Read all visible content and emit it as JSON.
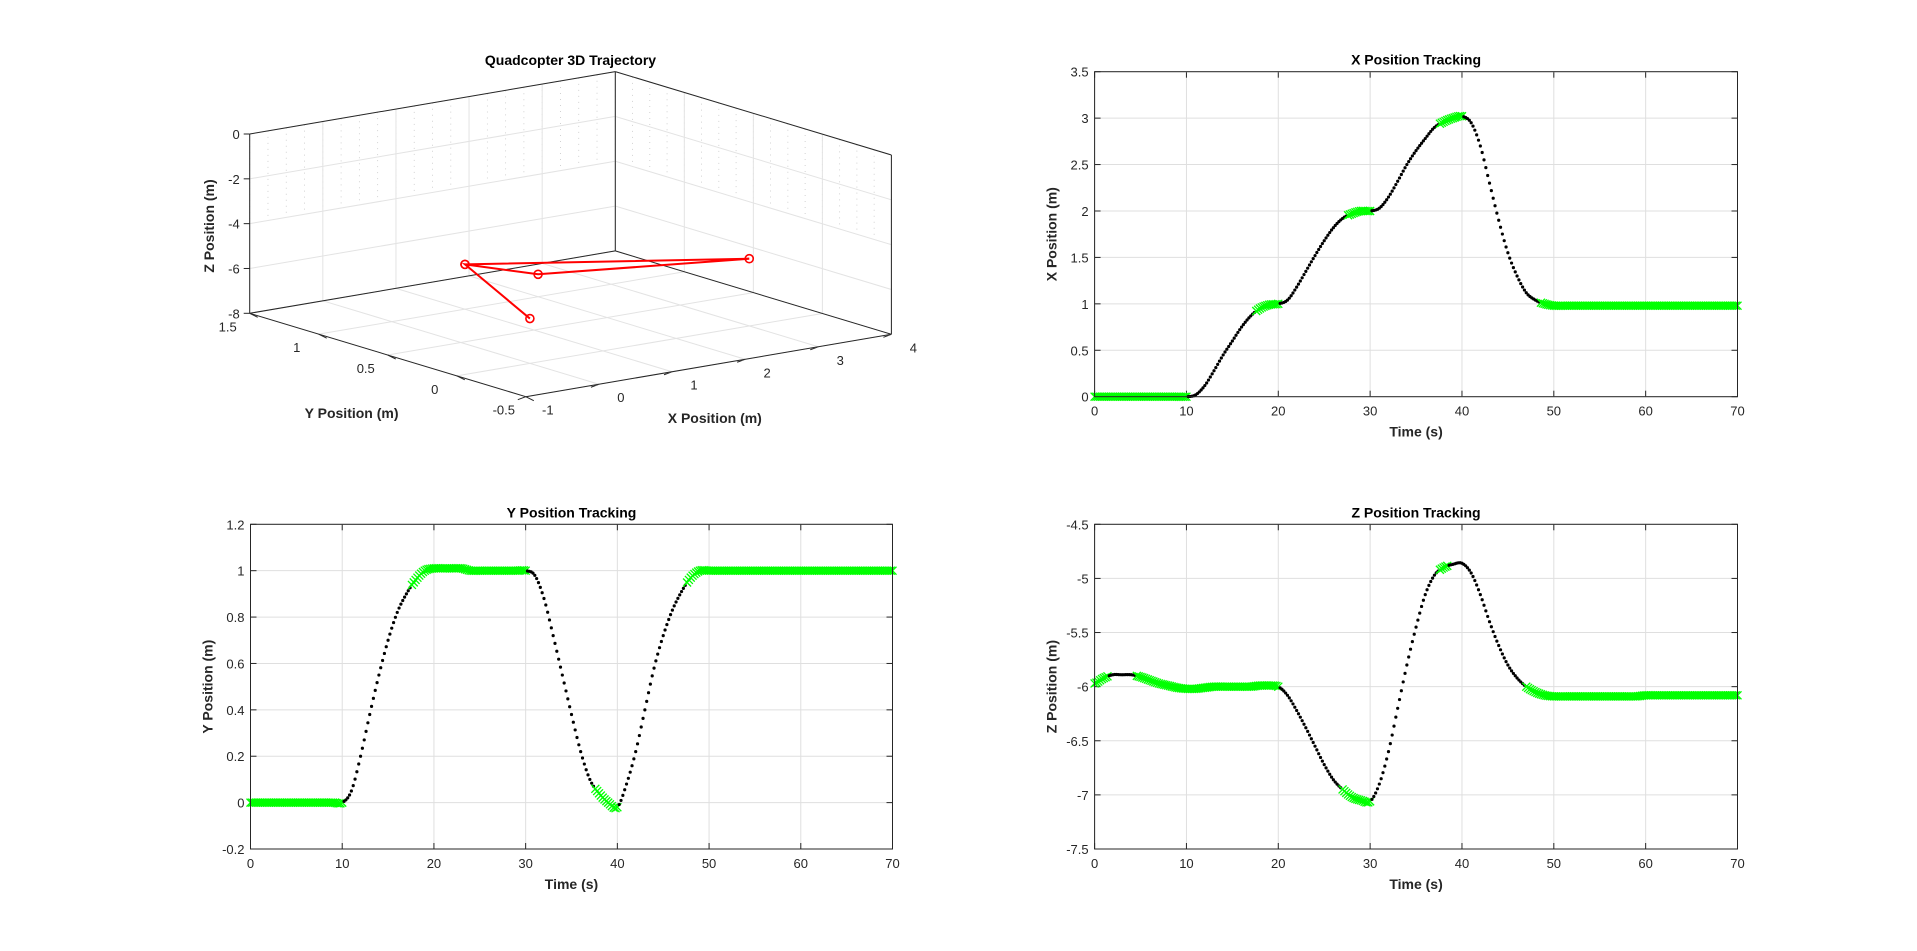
{
  "chart_data": [
    {
      "type": "line3d",
      "title": "Quadcopter 3D Trajectory",
      "xlabel": "X Position (m)",
      "ylabel": "Y Position (m)",
      "zlabel": "Z Position (m)",
      "xlim": [
        -1,
        4
      ],
      "ylim": [
        -0.5,
        1.5
      ],
      "zlim": [
        -8,
        0
      ],
      "xticks": [
        "-1",
        "0",
        "1",
        "2",
        "3",
        "4"
      ],
      "yticks": [
        "-0.5",
        "0",
        "0.5",
        "1",
        "1.5"
      ],
      "zticks": [
        "-8",
        "-6",
        "-4",
        "-2",
        "0"
      ],
      "grid": true,
      "path_color": "#ff0000",
      "waypoints": [
        {
          "x": 0,
          "y": 0,
          "z": -6
        },
        {
          "x": 1,
          "y": 1,
          "z": -6
        },
        {
          "x": 2,
          "y": 1,
          "z": -7
        },
        {
          "x": 3,
          "y": 0,
          "z": -5
        },
        {
          "x": 1,
          "y": 1,
          "z": -6
        }
      ]
    },
    {
      "type": "scatter",
      "title": "X Position Tracking",
      "xlabel": "Time (s)",
      "ylabel": "X Position (m)",
      "xlim": [
        0,
        70
      ],
      "ylim": [
        0,
        3.5
      ],
      "xticks": [
        "0",
        "10",
        "20",
        "30",
        "40",
        "50",
        "60",
        "70"
      ],
      "yticks": [
        "0",
        "0.5",
        "1",
        "1.5",
        "2",
        "2.5",
        "3",
        "3.5"
      ],
      "grid": true,
      "colors": {
        "moving": "#000000",
        "near_waypoint": "#00ff00"
      },
      "t": [
        0,
        1,
        2,
        3,
        4,
        5,
        6,
        7,
        8,
        9,
        10,
        11,
        12,
        13,
        14,
        15,
        16,
        17,
        18,
        19,
        20,
        21,
        22,
        23,
        24,
        25,
        26,
        27,
        28,
        29,
        30,
        31,
        32,
        33,
        34,
        35,
        36,
        37,
        38,
        39,
        40,
        41,
        42,
        43,
        44,
        45,
        46,
        47,
        48,
        49,
        50,
        51,
        52,
        53,
        54,
        55,
        56,
        57,
        58,
        59,
        60,
        61,
        62,
        63,
        64,
        65,
        66,
        67,
        68,
        69,
        70
      ],
      "values": [
        0,
        0,
        0,
        0,
        0,
        0,
        0,
        0,
        0,
        0,
        0,
        0.02,
        0.12,
        0.28,
        0.45,
        0.6,
        0.75,
        0.87,
        0.95,
        0.99,
        1.0,
        1.04,
        1.18,
        1.35,
        1.52,
        1.68,
        1.82,
        1.92,
        1.97,
        2.0,
        2.0,
        2.03,
        2.15,
        2.32,
        2.5,
        2.65,
        2.78,
        2.9,
        2.96,
        3.0,
        3.02,
        2.95,
        2.7,
        2.3,
        1.9,
        1.55,
        1.3,
        1.12,
        1.04,
        1.0,
        0.98,
        0.98,
        0.98,
        0.98,
        0.98,
        0.98,
        0.98,
        0.98,
        0.98,
        0.98,
        0.98,
        0.98,
        0.98,
        0.98,
        0.98,
        0.98,
        0.98,
        0.98,
        0.98,
        0.98,
        0.98
      ],
      "near_waypoint_ranges": [
        [
          0,
          10
        ],
        [
          17.5,
          20
        ],
        [
          27.5,
          30
        ],
        [
          37.5,
          40
        ],
        [
          48.5,
          70
        ]
      ]
    },
    {
      "type": "scatter",
      "title": "Y Position Tracking",
      "xlabel": "Time (s)",
      "ylabel": "Y Position (m)",
      "xlim": [
        0,
        70
      ],
      "ylim": [
        -0.2,
        1.2
      ],
      "xticks": [
        "0",
        "10",
        "20",
        "30",
        "40",
        "50",
        "60",
        "70"
      ],
      "yticks": [
        "-0.2",
        "0",
        "0.2",
        "0.4",
        "0.6",
        "0.8",
        "1",
        "1.2"
      ],
      "grid": true,
      "colors": {
        "moving": "#000000",
        "near_waypoint": "#00ff00"
      },
      "t": [
        0,
        1,
        2,
        3,
        4,
        5,
        6,
        7,
        8,
        9,
        10,
        11,
        12,
        13,
        14,
        15,
        16,
        17,
        18,
        19,
        20,
        21,
        22,
        23,
        24,
        25,
        26,
        27,
        28,
        29,
        30,
        31,
        32,
        33,
        34,
        35,
        36,
        37,
        38,
        39,
        40,
        41,
        42,
        43,
        44,
        45,
        46,
        47,
        48,
        49,
        50,
        51,
        52,
        53,
        54,
        55,
        56,
        57,
        58,
        59,
        60,
        61,
        62,
        63,
        64,
        65,
        66,
        67,
        68,
        69,
        70
      ],
      "values": [
        0,
        0,
        0,
        0,
        0,
        0,
        0,
        0,
        0,
        0,
        0,
        0.05,
        0.2,
        0.38,
        0.55,
        0.7,
        0.82,
        0.9,
        0.96,
        1.0,
        1.01,
        1.01,
        1.01,
        1.01,
        1.0,
        1.0,
        1.0,
        1.0,
        1.0,
        1.0,
        1.0,
        0.98,
        0.88,
        0.72,
        0.55,
        0.38,
        0.22,
        0.1,
        0.04,
        0.0,
        -0.02,
        0.08,
        0.22,
        0.4,
        0.58,
        0.72,
        0.83,
        0.91,
        0.97,
        1.0,
        1.0,
        1.0,
        1.0,
        1.0,
        1.0,
        1.0,
        1.0,
        1.0,
        1.0,
        1.0,
        1.0,
        1.0,
        1.0,
        1.0,
        1.0,
        1.0,
        1.0,
        1.0,
        1.0,
        1.0,
        1.0
      ],
      "near_waypoint_ranges": [
        [
          0,
          10
        ],
        [
          17.5,
          30
        ],
        [
          37.5,
          40
        ],
        [
          47.5,
          70
        ]
      ]
    },
    {
      "type": "scatter",
      "title": "Z Position Tracking",
      "xlabel": "Time (s)",
      "ylabel": "Z Position (m)",
      "xlim": [
        0,
        70
      ],
      "ylim": [
        -7.5,
        -4.5
      ],
      "xticks": [
        "0",
        "10",
        "20",
        "30",
        "40",
        "50",
        "60",
        "70"
      ],
      "yticks": [
        "-7.5",
        "-7",
        "-6.5",
        "-6",
        "-5.5",
        "-5",
        "-4.5"
      ],
      "grid": true,
      "colors": {
        "moving": "#000000",
        "near_waypoint": "#00ff00"
      },
      "t": [
        0,
        1,
        2,
        3,
        4,
        5,
        6,
        7,
        8,
        9,
        10,
        11,
        12,
        13,
        14,
        15,
        16,
        17,
        18,
        19,
        20,
        21,
        22,
        23,
        24,
        25,
        26,
        27,
        28,
        29,
        30,
        31,
        32,
        33,
        34,
        35,
        36,
        37,
        38,
        39,
        40,
        41,
        42,
        43,
        44,
        45,
        46,
        47,
        48,
        49,
        50,
        51,
        52,
        53,
        54,
        55,
        56,
        57,
        58,
        59,
        60,
        61,
        62,
        63,
        64,
        65,
        66,
        67,
        68,
        69,
        70
      ],
      "values": [
        -5.97,
        -5.92,
        -5.89,
        -5.89,
        -5.89,
        -5.91,
        -5.94,
        -5.97,
        -5.99,
        -6.01,
        -6.02,
        -6.02,
        -6.01,
        -6.0,
        -6.0,
        -6.0,
        -6.0,
        -6.0,
        -5.99,
        -5.99,
        -6.0,
        -6.08,
        -6.22,
        -6.38,
        -6.55,
        -6.72,
        -6.86,
        -6.95,
        -7.02,
        -7.05,
        -7.06,
        -6.9,
        -6.6,
        -6.2,
        -5.8,
        -5.45,
        -5.15,
        -4.97,
        -4.9,
        -4.87,
        -4.86,
        -4.95,
        -5.15,
        -5.4,
        -5.62,
        -5.8,
        -5.92,
        -6.0,
        -6.05,
        -6.08,
        -6.09,
        -6.09,
        -6.09,
        -6.09,
        -6.09,
        -6.09,
        -6.09,
        -6.09,
        -6.09,
        -6.09,
        -6.08,
        -6.08,
        -6.08,
        -6.08,
        -6.08,
        -6.08,
        -6.08,
        -6.08,
        -6.08,
        -6.08,
        -6.08
      ],
      "near_waypoint_ranges": [
        [
          0,
          1.5
        ],
        [
          4.5,
          20
        ],
        [
          27,
          30
        ],
        [
          37.5,
          38.5
        ],
        [
          47,
          70
        ]
      ]
    }
  ]
}
